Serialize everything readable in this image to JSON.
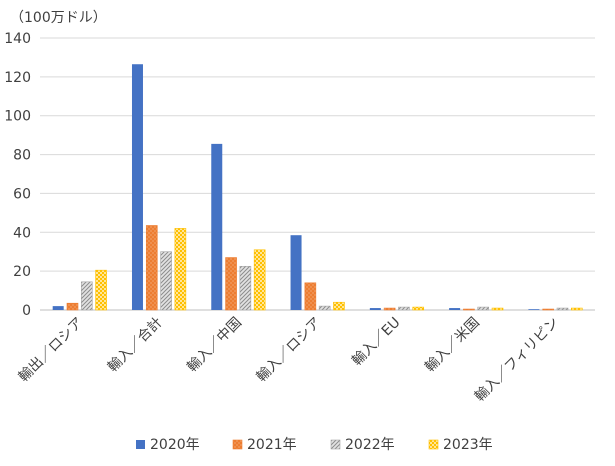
{
  "unit_label": "（100万ドル）",
  "chart_data": {
    "type": "bar",
    "unit": "（100万ドル）",
    "categories": [
      "輸出／ロシア",
      "輸入／合計",
      "輸入／中国",
      "輸入／ロシア",
      "輸入／EU",
      "輸入／米国",
      "輸入／フィリピン"
    ],
    "series": [
      {
        "name": "2020年",
        "color": "#4472c4",
        "pattern": "solid",
        "values": [
          2,
          126.5,
          85.5,
          38.5,
          1,
          1,
          0.3
        ]
      },
      {
        "name": "2021年",
        "color": "#ed7d31",
        "pattern": "dots",
        "values": [
          3.5,
          43.5,
          27,
          14,
          1,
          0.5,
          0.5
        ]
      },
      {
        "name": "2022年",
        "color": "#a5a5a5",
        "pattern": "diagonal",
        "values": [
          14.5,
          30,
          22.5,
          2,
          1.5,
          1.5,
          1
        ]
      },
      {
        "name": "2023年",
        "color": "#ffc000",
        "pattern": "checker",
        "values": [
          20.5,
          42,
          31,
          4,
          1.5,
          1,
          1
        ]
      }
    ],
    "ylim": [
      0,
      140
    ],
    "yticks": [
      0,
      20,
      40,
      60,
      80,
      100,
      120,
      140
    ],
    "grid": true,
    "legend": "bottom"
  }
}
